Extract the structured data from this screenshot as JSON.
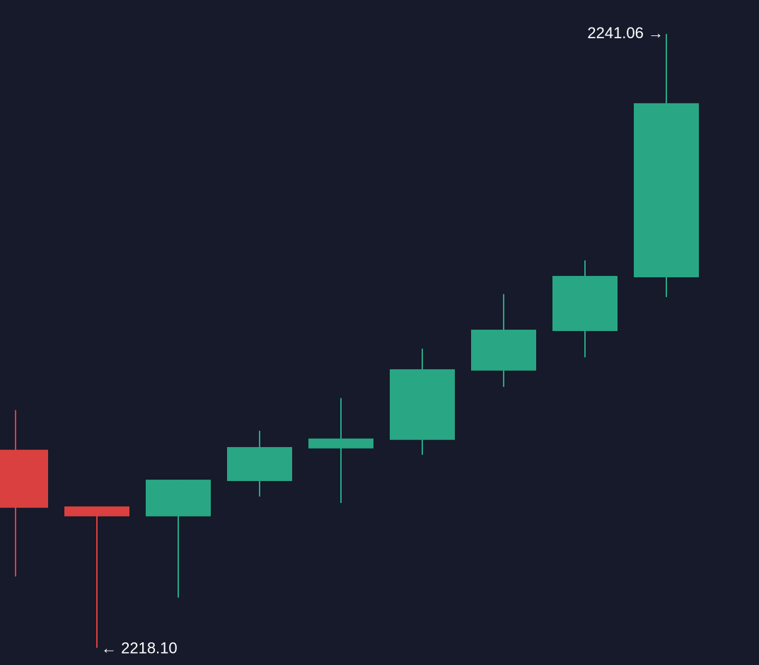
{
  "chart_data": {
    "type": "candlestick",
    "annotations": [
      "2241.06 →",
      "← 2218.10"
    ],
    "open": [
      2225.51,
      2223.39,
      2223.02,
      2224.34,
      2225.56,
      2225.88,
      2228.47,
      2229.95,
      2231.96
    ],
    "high": [
      2226.99,
      2223.39,
      2224.39,
      2226.22,
      2227.44,
      2229.29,
      2231.33,
      2232.59,
      2241.06
    ],
    "low": [
      2220.77,
      2218.1,
      2219.98,
      2223.76,
      2223.52,
      2225.32,
      2227.86,
      2228.97,
      2231.22
    ],
    "close": [
      2223.34,
      2223.02,
      2224.39,
      2225.61,
      2225.93,
      2228.52,
      2230.0,
      2232.01,
      2238.47
    ],
    "ylim": [
      2217.46,
      2242.33
    ],
    "up_color": "#29a683",
    "down_color": "#d9403f"
  }
}
